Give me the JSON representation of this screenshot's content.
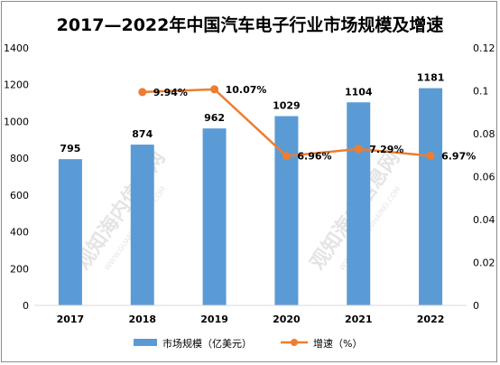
{
  "chart_data": {
    "type": "bar",
    "title": "2017—2022年中国汽车电子行业市场规模及增速",
    "categories": [
      "2017",
      "2018",
      "2019",
      "2020",
      "2021",
      "2022"
    ],
    "series": [
      {
        "name": "市场规模（亿美元）",
        "type": "bar",
        "axis": "left",
        "color": "#5b9bd5",
        "values": [
          795,
          874,
          962,
          1029,
          1104,
          1181
        ],
        "value_labels": [
          "795",
          "874",
          "962",
          "1029",
          "1104",
          "1181"
        ]
      },
      {
        "name": "增速（%）",
        "type": "line",
        "axis": "right",
        "color": "#ed7d31",
        "values": [
          null,
          0.0994,
          0.1007,
          0.0696,
          0.0729,
          0.0697
        ],
        "value_labels": [
          "",
          "9.94%",
          "10.07%",
          "6.96%",
          "7.29%",
          "6.97%"
        ]
      }
    ],
    "y_left": {
      "min": 0,
      "max": 1400,
      "ticks": [
        "0",
        "200",
        "400",
        "600",
        "800",
        "1000",
        "1200",
        "1400"
      ]
    },
    "y_right": {
      "min": 0,
      "max": 0.12,
      "ticks": [
        "0",
        "0.02",
        "0.04",
        "0.06",
        "0.08",
        "0.1",
        "0.12"
      ]
    },
    "grid": false,
    "legend": "bottom"
  },
  "watermark": {
    "text": "观知海内信息网",
    "url": "WWW.GUANZHIHAINEI.COM"
  }
}
